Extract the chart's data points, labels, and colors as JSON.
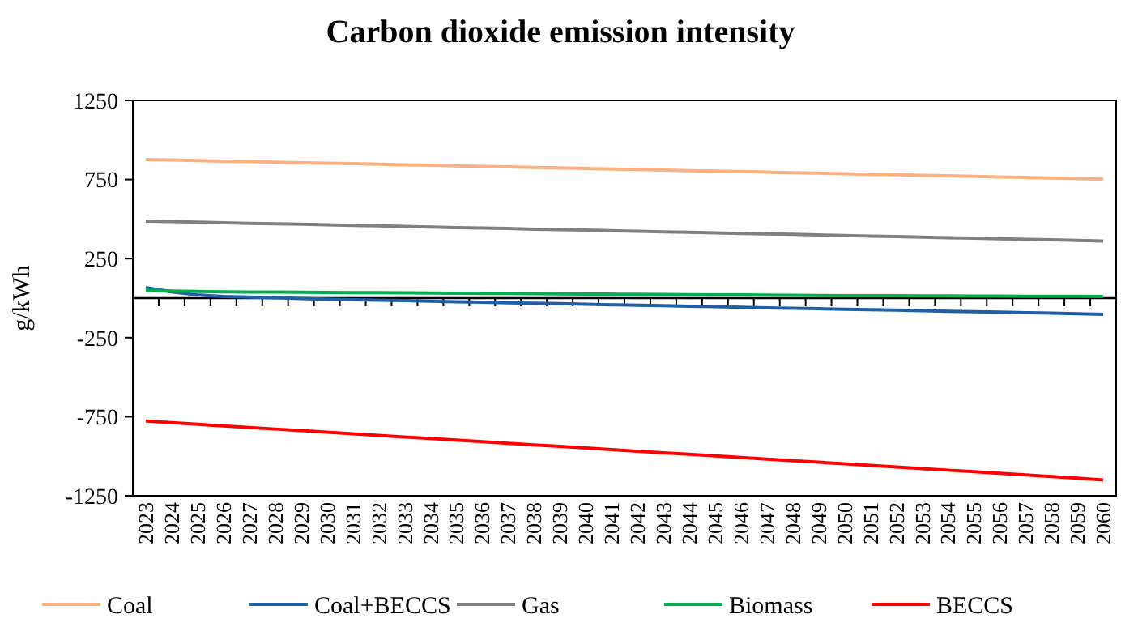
{
  "chart_data": {
    "type": "line",
    "title": "Carbon dioxide emission intensity",
    "ylabel": "g/kWh",
    "categories": [
      "2023",
      "2024",
      "2025",
      "2026",
      "2027",
      "2028",
      "2029",
      "2030",
      "2031",
      "2032",
      "2033",
      "2034",
      "2035",
      "2036",
      "2037",
      "2038",
      "2039",
      "2040",
      "2041",
      "2042",
      "2043",
      "2044",
      "2045",
      "2046",
      "2047",
      "2048",
      "2049",
      "2050",
      "2051",
      "2052",
      "2053",
      "2054",
      "2055",
      "2056",
      "2057",
      "2058",
      "2059",
      "2060"
    ],
    "ylim": [
      -1250,
      1250
    ],
    "yticks": [
      -1250,
      -750,
      -250,
      250,
      750,
      1250
    ],
    "grid": false,
    "legend": "bottom",
    "marker": "none",
    "line_style": "solid",
    "series": [
      {
        "name": "Coal",
        "color": "#fbb07f",
        "values": [
          876,
          873,
          870,
          866,
          863,
          860,
          856,
          853,
          850,
          846,
          843,
          840,
          836,
          833,
          830,
          826,
          823,
          820,
          816,
          813,
          810,
          806,
          803,
          800,
          796,
          793,
          790,
          786,
          783,
          780,
          776,
          773,
          770,
          766,
          763,
          760,
          756,
          753
        ]
      },
      {
        "name": "Coal+BECCS",
        "color": "#1f5fa8",
        "values": [
          67,
          40,
          20,
          10,
          6,
          2,
          -2,
          -6,
          -10,
          -13,
          -16,
          -19,
          -23,
          -26,
          -29,
          -32,
          -35,
          -38,
          -42,
          -45,
          -48,
          -51,
          -54,
          -57,
          -61,
          -64,
          -67,
          -70,
          -73,
          -76,
          -80,
          -83,
          -86,
          -89,
          -92,
          -95,
          -99,
          -102
        ]
      },
      {
        "name": "Gas",
        "color": "#808080",
        "values": [
          487,
          484,
          480,
          477,
          473,
          470,
          467,
          463,
          460,
          457,
          453,
          450,
          446,
          443,
          440,
          436,
          433,
          430,
          426,
          423,
          419,
          416,
          413,
          409,
          406,
          403,
          399,
          396,
          392,
          389,
          386,
          382,
          379,
          375,
          372,
          369,
          365,
          361
        ]
      },
      {
        "name": "Biomass",
        "color": "#00b050",
        "values": [
          50,
          45,
          42,
          40,
          39,
          38,
          37,
          36,
          35,
          34,
          33,
          32,
          31,
          30,
          29,
          28,
          27,
          26,
          25,
          24,
          23,
          22,
          21,
          20,
          19,
          18,
          17,
          16,
          15,
          15,
          14,
          14,
          13,
          13,
          12,
          12,
          11,
          10
        ]
      },
      {
        "name": "BECCS",
        "color": "#ff0000",
        "values": [
          -778,
          -788,
          -798,
          -808,
          -818,
          -828,
          -838,
          -848,
          -858,
          -868,
          -878,
          -888,
          -898,
          -908,
          -918,
          -928,
          -938,
          -948,
          -958,
          -968,
          -978,
          -988,
          -998,
          -1008,
          -1018,
          -1028,
          -1038,
          -1048,
          -1058,
          -1068,
          -1078,
          -1088,
          -1098,
          -1108,
          -1118,
          -1128,
          -1138,
          -1150
        ]
      }
    ]
  }
}
